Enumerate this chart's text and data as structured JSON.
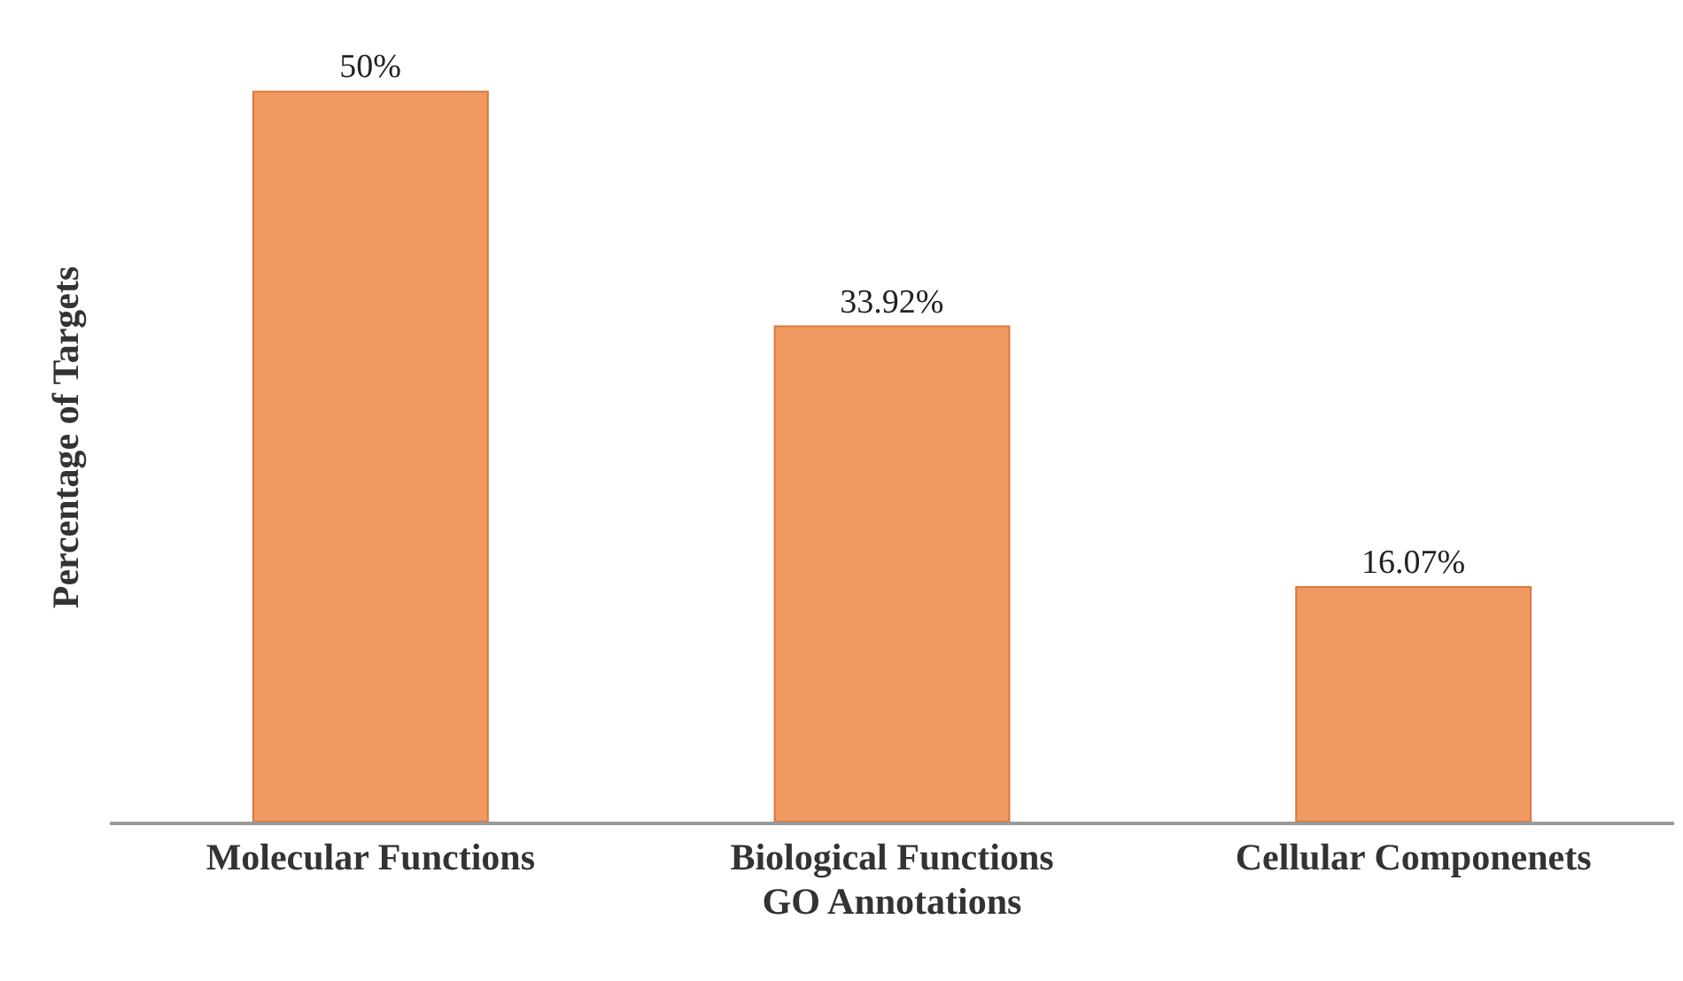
{
  "chart_data": {
    "type": "bar",
    "xlabel": "GO Annotations",
    "ylabel": "Percentage of Targets",
    "categories": [
      "Molecular Functions",
      "Biological Functions",
      "Cellular Componenets"
    ],
    "values": [
      50,
      33.92,
      16.07
    ],
    "value_labels": [
      "50%",
      "33.92%",
      "16.07%"
    ],
    "color": "#f09a62",
    "grid": false,
    "legend": false
  }
}
